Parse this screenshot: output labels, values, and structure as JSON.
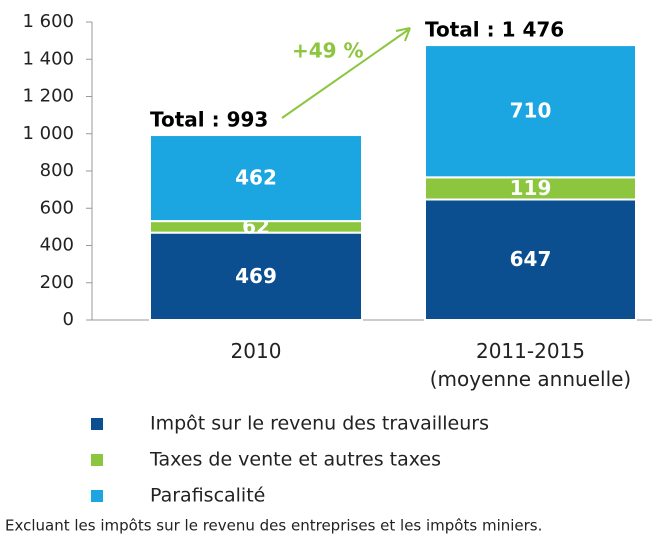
{
  "chart_data": {
    "type": "stacked_bar",
    "categories": [
      [
        "2010"
      ],
      [
        "2011-2015",
        "(moyenne annuelle)"
      ]
    ],
    "series": [
      {
        "name": "Impôt sur le revenu des travailleurs",
        "color": "#0b4f91",
        "values": [
          469,
          647
        ]
      },
      {
        "name": "Taxes de vente et autres taxes",
        "color": "#8cc63e",
        "values": [
          62,
          119
        ]
      },
      {
        "name": "Parafiscalité",
        "color": "#1ba5e1",
        "values": [
          462,
          710
        ]
      }
    ],
    "totals": [
      {
        "value": 993,
        "label": "Total : 993"
      },
      {
        "value": 1476,
        "label": "Total : 1 476"
      }
    ],
    "annotation": "+49 %",
    "ylim": [
      0,
      1600
    ],
    "yticks": [
      0,
      200,
      400,
      600,
      800,
      {
        "value": 1000,
        "label": "1 000"
      },
      {
        "value": 1200,
        "label": "1 200"
      },
      {
        "value": 1400,
        "label": "1 400"
      },
      {
        "value": 1600,
        "label": "1 600"
      }
    ],
    "note": "Excluant les impôts sur le revenu des entreprises et les impôts miniers."
  }
}
